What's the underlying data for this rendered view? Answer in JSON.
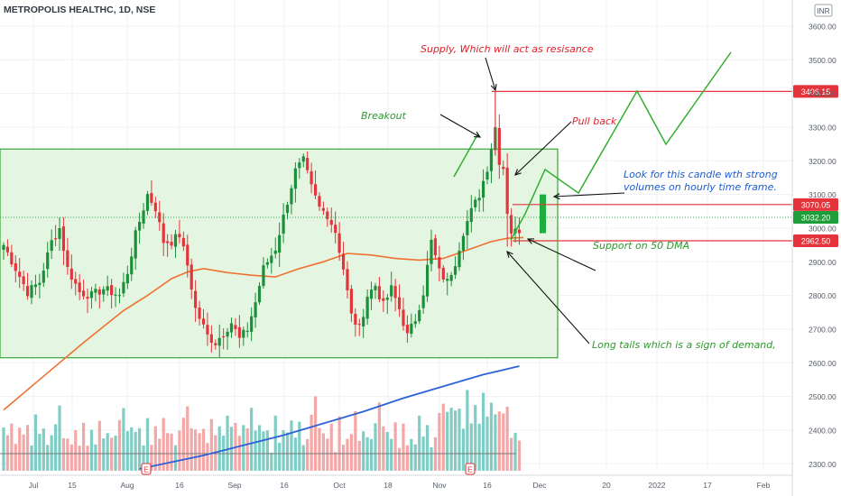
{
  "header": {
    "symbol": "METROPOLIS HEALTHC, 1D, NSE",
    "currency": "INR"
  },
  "colors": {
    "up": "#26a69a",
    "up_body": "#1b8f3a",
    "down": "#e5333b",
    "vol_up": "#7fcdc4",
    "vol_down": "#f4a7a7",
    "ma50": "#f07030",
    "ma200": "#2d62d6",
    "zone_fill": "#e4f6e1",
    "zone_stroke": "#3aa53a",
    "level": "#e5333b",
    "green_label": "#1b9a2e",
    "annotation_red": "#e0202a",
    "annotation_green": "#2a9a2a",
    "annotation_blue": "#1c5bd1",
    "grid": "#eef0f3",
    "axis_text": "#555b66"
  },
  "chart_data": {
    "type": "candlestick",
    "y_axis": {
      "ticks": [
        "3600.00",
        "3500.00",
        "3400.00",
        "3300.00",
        "3200.00",
        "3100.00",
        "3000.00",
        "2900.00",
        "2800.00",
        "2700.00",
        "2600.00",
        "2500.00",
        "2400.00",
        "2300.00"
      ],
      "range": [
        2275,
        3660
      ]
    },
    "x_axis": {
      "ticks": [
        "Jul",
        "15",
        "Aug",
        "16",
        "Sep",
        "16",
        "Oct",
        "18",
        "Nov",
        "16",
        "Dec",
        "20",
        "2022",
        "17",
        "Feb"
      ]
    },
    "price_levels": [
      {
        "label": "3406.15",
        "value": 3406.15,
        "style": "red"
      },
      {
        "label": "3070.05",
        "value": 3070.05,
        "style": "red"
      },
      {
        "label": "3032.20",
        "value": 3032.2,
        "style": "green"
      },
      {
        "label": "2962.50",
        "value": 2962.5,
        "style": "red"
      }
    ],
    "consolidation_zone": {
      "top": 3235,
      "bottom": 2615
    },
    "candle_anchor_closes": [
      [
        0,
        2950
      ],
      [
        3,
        2880
      ],
      [
        6,
        2810
      ],
      [
        9,
        2840
      ],
      [
        12,
        2960
      ],
      [
        14,
        3000
      ],
      [
        16,
        2880
      ],
      [
        19,
        2810
      ],
      [
        22,
        2800
      ],
      [
        25,
        2820
      ],
      [
        27,
        2810
      ],
      [
        29,
        2800
      ],
      [
        31,
        2870
      ],
      [
        33,
        2980
      ],
      [
        36,
        3100
      ],
      [
        38,
        3060
      ],
      [
        40,
        2960
      ],
      [
        42,
        2960
      ],
      [
        44,
        2980
      ],
      [
        46,
        2890
      ],
      [
        48,
        2760
      ],
      [
        51,
        2680
      ],
      [
        53,
        2660
      ],
      [
        55,
        2690
      ],
      [
        57,
        2720
      ],
      [
        59,
        2670
      ],
      [
        61,
        2700
      ],
      [
        63,
        2780
      ],
      [
        65,
        2880
      ],
      [
        68,
        2940
      ],
      [
        71,
        3080
      ],
      [
        73,
        3170
      ],
      [
        75,
        3200
      ],
      [
        77,
        3120
      ],
      [
        79,
        3060
      ],
      [
        81,
        3040
      ],
      [
        83,
        2990
      ],
      [
        85,
        2880
      ],
      [
        87,
        2740
      ],
      [
        89,
        2700
      ],
      [
        91,
        2800
      ],
      [
        93,
        2830
      ],
      [
        95,
        2770
      ],
      [
        97,
        2820
      ],
      [
        99,
        2760
      ],
      [
        101,
        2680
      ],
      [
        103,
        2730
      ],
      [
        105,
        2810
      ],
      [
        107,
        2960
      ],
      [
        109,
        2870
      ],
      [
        111,
        2840
      ],
      [
        113,
        2900
      ],
      [
        115,
        2990
      ],
      [
        117,
        3050
      ],
      [
        119,
        3100
      ],
      [
        121,
        3180
      ],
      [
        123,
        3300
      ],
      [
        124,
        3200
      ],
      [
        125,
        3180
      ],
      [
        126,
        3050
      ],
      [
        127,
        2990
      ],
      [
        128,
        2990
      ],
      [
        129,
        2995
      ]
    ],
    "ma50": [
      [
        0,
        2460
      ],
      [
        10,
        2560
      ],
      [
        20,
        2660
      ],
      [
        30,
        2755
      ],
      [
        36,
        2800
      ],
      [
        42,
        2850
      ],
      [
        46,
        2870
      ],
      [
        50,
        2880
      ],
      [
        56,
        2868
      ],
      [
        62,
        2860
      ],
      [
        68,
        2855
      ],
      [
        74,
        2880
      ],
      [
        80,
        2900
      ],
      [
        86,
        2925
      ],
      [
        92,
        2920
      ],
      [
        98,
        2910
      ],
      [
        104,
        2905
      ],
      [
        110,
        2910
      ],
      [
        116,
        2935
      ],
      [
        122,
        2960
      ],
      [
        126,
        2970
      ],
      [
        130,
        2972
      ]
    ],
    "ma200": [
      [
        34,
        2285
      ],
      [
        50,
        2325
      ],
      [
        60,
        2355
      ],
      [
        70,
        2385
      ],
      [
        80,
        2420
      ],
      [
        90,
        2455
      ],
      [
        100,
        2495
      ],
      [
        110,
        2530
      ],
      [
        120,
        2565
      ],
      [
        129,
        2590
      ]
    ],
    "volume_pattern": [
      3,
      2,
      4,
      1,
      5,
      2,
      3,
      2,
      6,
      3,
      4,
      2,
      3,
      5,
      8,
      3
    ],
    "projection": [
      [
        2963,
        3020
      ],
      [
        3010,
        3160
      ],
      [
        3105,
        3130
      ],
      [
        3400,
        3220
      ],
      [
        3090,
        3330
      ],
      [
        3500,
        3520
      ]
    ],
    "annotations": [
      {
        "text": "Supply, Which will act as resisance",
        "color": "annotation_red"
      },
      {
        "text": "Breakout",
        "color": "annotation_green"
      },
      {
        "text": "Pull back",
        "color": "annotation_red"
      },
      {
        "text": "Look for this candle wth strong",
        "color": "annotation_blue"
      },
      {
        "text": "volumes on hourly time frame.",
        "color": "annotation_blue"
      },
      {
        "text": "Support on 50 DMA",
        "color": "annotation_green"
      },
      {
        "text": "Long tails which is a sign of demand,",
        "color": "annotation_green"
      }
    ],
    "earnings_markers": [
      "E",
      "E"
    ]
  }
}
